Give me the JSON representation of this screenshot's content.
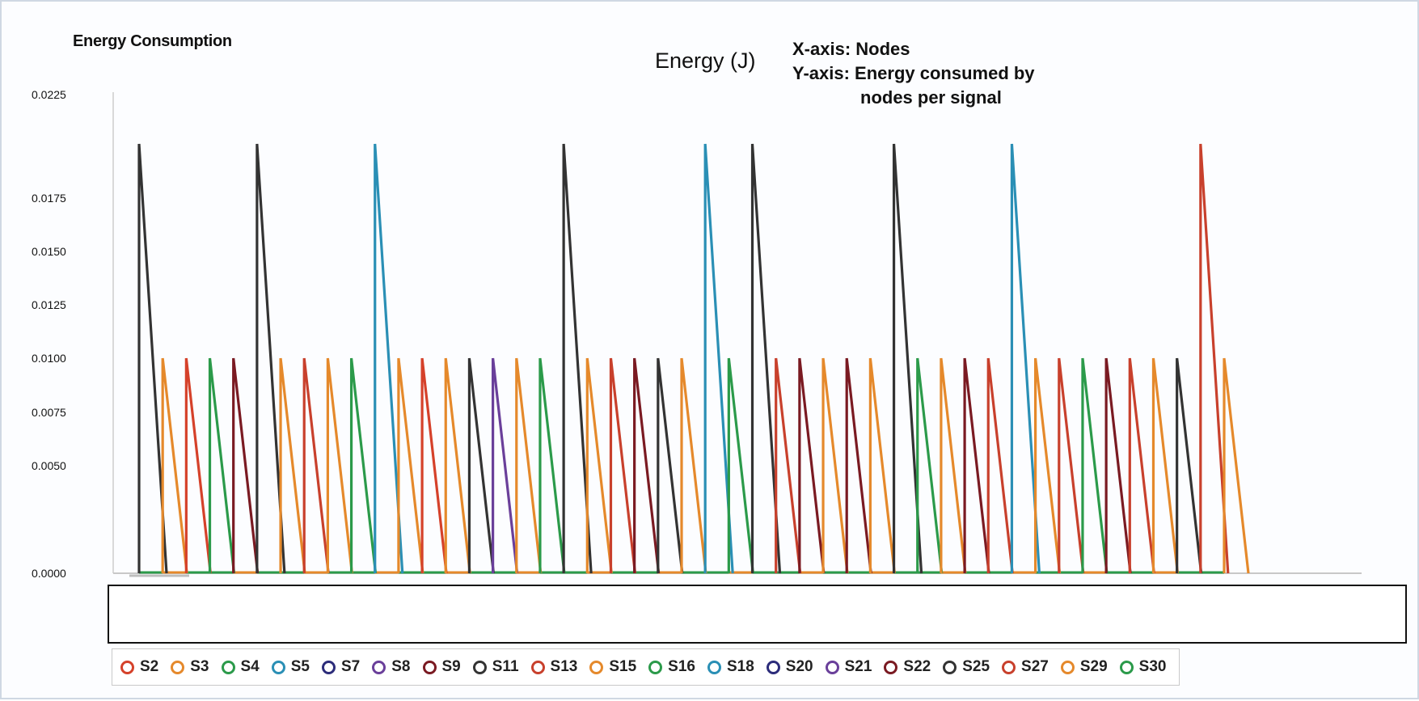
{
  "header": {
    "title": "Energy Consumption",
    "chart_title": "Energy (J)",
    "x_axis_note": "X-axis: Nodes",
    "y_axis_note_line1": "Y-axis: Energy consumed by",
    "y_axis_note_line2": "nodes per signal"
  },
  "chart_data": {
    "type": "line",
    "title": "Energy (J)",
    "xlabel": "",
    "ylabel": "",
    "y_ticks": [
      "0.0000",
      "0.0050",
      "0.0075",
      "0.0100",
      "0.0125",
      "0.0150",
      "0.0175",
      "0.0225"
    ],
    "ylim": [
      0,
      0.0225
    ],
    "grid": false,
    "legend_position": "bottom",
    "series": [
      {
        "name": "S2",
        "color": "#d5412a",
        "values": [
          0.01,
          0
        ]
      },
      {
        "name": "S3",
        "color": "#e5892b",
        "values": [
          0.01,
          0
        ]
      },
      {
        "name": "S4",
        "color": "#2b9a4a",
        "values": [
          0.01,
          0
        ]
      },
      {
        "name": "S5",
        "color": "#2a8fb5",
        "values": [
          0.02,
          0
        ]
      },
      {
        "name": "S7",
        "color": "#2c2c7a",
        "values": [
          0.01,
          0
        ]
      },
      {
        "name": "S8",
        "color": "#6a3f9a",
        "values": [
          0.01,
          0
        ]
      },
      {
        "name": "S9",
        "color": "#7a1a22",
        "values": [
          0.01,
          0
        ]
      },
      {
        "name": "S11",
        "color": "#333333",
        "values": [
          0.02,
          0
        ]
      },
      {
        "name": "S13",
        "color": "#c8402c",
        "values": [
          0.01,
          0
        ]
      },
      {
        "name": "S15",
        "color": "#e5892b",
        "values": [
          0.01,
          0
        ]
      },
      {
        "name": "S16",
        "color": "#2b9a4a",
        "values": [
          0.01,
          0
        ]
      },
      {
        "name": "S18",
        "color": "#2a8fb5",
        "values": [
          0.02,
          0
        ]
      },
      {
        "name": "S20",
        "color": "#2c2c7a",
        "values": [
          0.01,
          0
        ]
      },
      {
        "name": "S21",
        "color": "#6a3f9a",
        "values": [
          0.01,
          0
        ]
      },
      {
        "name": "S22",
        "color": "#7a1a22",
        "values": [
          0.01,
          0
        ]
      },
      {
        "name": "S25",
        "color": "#333333",
        "values": [
          0.02,
          0
        ]
      },
      {
        "name": "S27",
        "color": "#c8402c",
        "values": [
          0.02,
          0
        ]
      },
      {
        "name": "S29",
        "color": "#e5892b",
        "values": [
          0.01,
          0
        ]
      },
      {
        "name": "S30",
        "color": "#2b9a4a",
        "values": [
          0.01,
          0
        ]
      }
    ],
    "spikes": [
      {
        "series": "S11",
        "value": 0.02
      },
      {
        "series": "S3",
        "value": 0.01
      },
      {
        "series": "S2",
        "value": 0.01
      },
      {
        "series": "S4",
        "value": 0.01
      },
      {
        "series": "S9",
        "value": 0.01
      },
      {
        "series": "S11",
        "value": 0.02
      },
      {
        "series": "S3",
        "value": 0.01
      },
      {
        "series": "S13",
        "value": 0.01
      },
      {
        "series": "S15",
        "value": 0.01
      },
      {
        "series": "S4",
        "value": 0.01
      },
      {
        "series": "S5",
        "value": 0.02
      },
      {
        "series": "S3",
        "value": 0.01
      },
      {
        "series": "S2",
        "value": 0.01
      },
      {
        "series": "S15",
        "value": 0.01
      },
      {
        "series": "S11",
        "value": 0.01
      },
      {
        "series": "S8",
        "value": 0.01
      },
      {
        "series": "S15",
        "value": 0.01
      },
      {
        "series": "S16",
        "value": 0.01
      },
      {
        "series": "S11",
        "value": 0.02
      },
      {
        "series": "S15",
        "value": 0.01
      },
      {
        "series": "S13",
        "value": 0.01
      },
      {
        "series": "S22",
        "value": 0.01
      },
      {
        "series": "S25",
        "value": 0.01
      },
      {
        "series": "S15",
        "value": 0.01
      },
      {
        "series": "S18",
        "value": 0.02
      },
      {
        "series": "S16",
        "value": 0.01
      },
      {
        "series": "S25",
        "value": 0.02
      },
      {
        "series": "S27",
        "value": 0.01
      },
      {
        "series": "S22",
        "value": 0.01
      },
      {
        "series": "S15",
        "value": 0.01
      },
      {
        "series": "S9",
        "value": 0.01
      },
      {
        "series": "S29",
        "value": 0.01
      },
      {
        "series": "S25",
        "value": 0.02
      },
      {
        "series": "S16",
        "value": 0.01
      },
      {
        "series": "S29",
        "value": 0.01
      },
      {
        "series": "S22",
        "value": 0.01
      },
      {
        "series": "S13",
        "value": 0.01
      },
      {
        "series": "S18",
        "value": 0.02
      },
      {
        "series": "S3",
        "value": 0.01
      },
      {
        "series": "S27",
        "value": 0.01
      },
      {
        "series": "S30",
        "value": 0.01
      },
      {
        "series": "S22",
        "value": 0.01
      },
      {
        "series": "S27",
        "value": 0.01
      },
      {
        "series": "S29",
        "value": 0.01
      },
      {
        "series": "S25",
        "value": 0.01
      },
      {
        "series": "S27",
        "value": 0.02
      },
      {
        "series": "S29",
        "value": 0.01
      }
    ]
  },
  "legend": {
    "items": [
      {
        "label": "S2",
        "color": "#d5412a"
      },
      {
        "label": "S3",
        "color": "#e5892b"
      },
      {
        "label": "S4",
        "color": "#2b9a4a"
      },
      {
        "label": "S5",
        "color": "#2a8fb5"
      },
      {
        "label": "S7",
        "color": "#2c2c7a"
      },
      {
        "label": "S8",
        "color": "#6a3f9a"
      },
      {
        "label": "S9",
        "color": "#7a1a22"
      },
      {
        "label": "S11",
        "color": "#333333"
      },
      {
        "label": "S13",
        "color": "#c8402c"
      },
      {
        "label": "S15",
        "color": "#e5892b"
      },
      {
        "label": "S16",
        "color": "#2b9a4a"
      },
      {
        "label": "S18",
        "color": "#2a8fb5"
      },
      {
        "label": "S20",
        "color": "#2c2c7a"
      },
      {
        "label": "S21",
        "color": "#6a3f9a"
      },
      {
        "label": "S22",
        "color": "#7a1a22"
      },
      {
        "label": "S25",
        "color": "#333333"
      },
      {
        "label": "S27",
        "color": "#c8402c"
      },
      {
        "label": "S29",
        "color": "#e5892b"
      },
      {
        "label": "S30",
        "color": "#2b9a4a"
      }
    ]
  }
}
